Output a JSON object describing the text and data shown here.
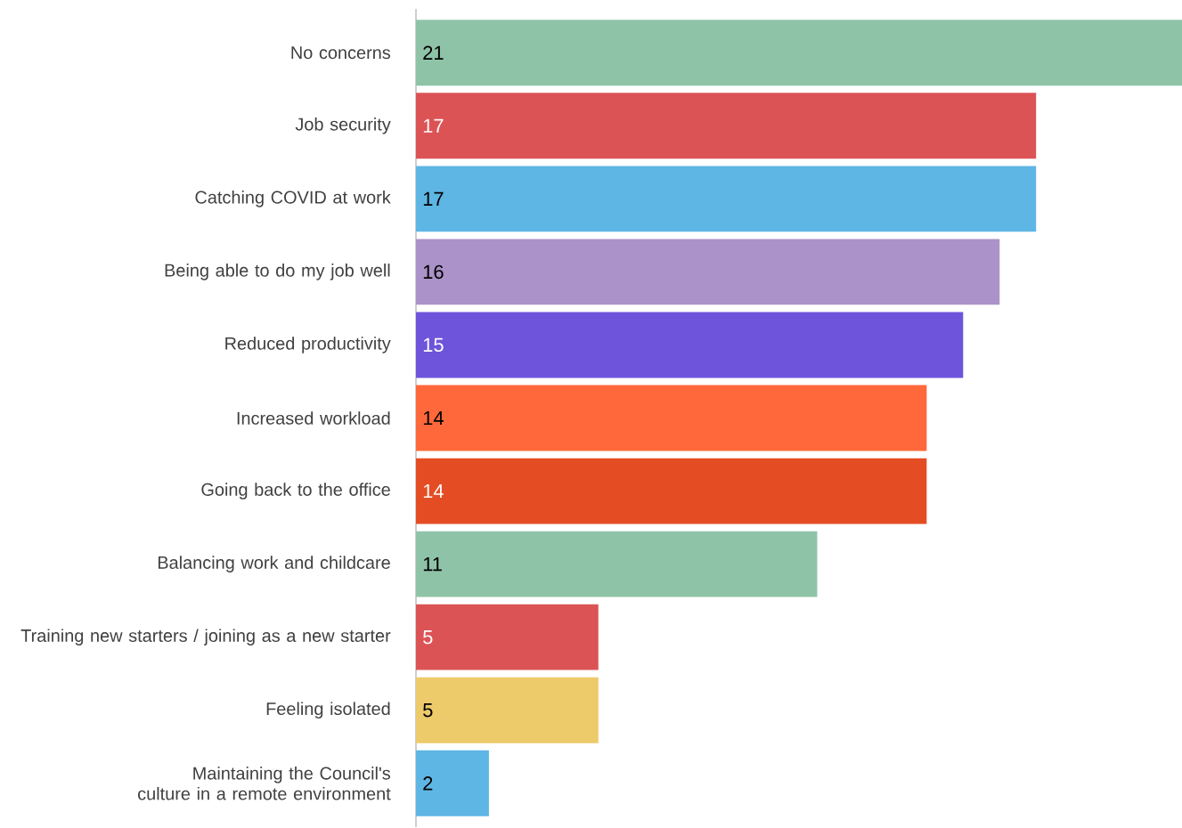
{
  "chart_data": {
    "type": "bar",
    "orientation": "horizontal",
    "data_labels": true,
    "categories": [
      "No concerns",
      "Job security",
      "Catching COVID at work",
      "Being able to do my job well",
      "Reduced productivity",
      "Increased workload",
      "Going back to the office",
      "Balancing work and childcare",
      "Training new starters / joining as a new starter",
      "Feeling isolated",
      "Maintaining the Council's culture in a remote environment"
    ],
    "values": [
      21,
      17,
      17,
      16,
      15,
      14,
      14,
      11,
      5,
      5,
      2
    ],
    "colors": [
      "#8fc3a8",
      "#dc5356",
      "#5eb6e4",
      "#ab92c8",
      "#6d54db",
      "#ff683a",
      "#e44d24",
      "#8fc3a8",
      "#dc5356",
      "#edca6a",
      "#5eb6e4"
    ]
  }
}
